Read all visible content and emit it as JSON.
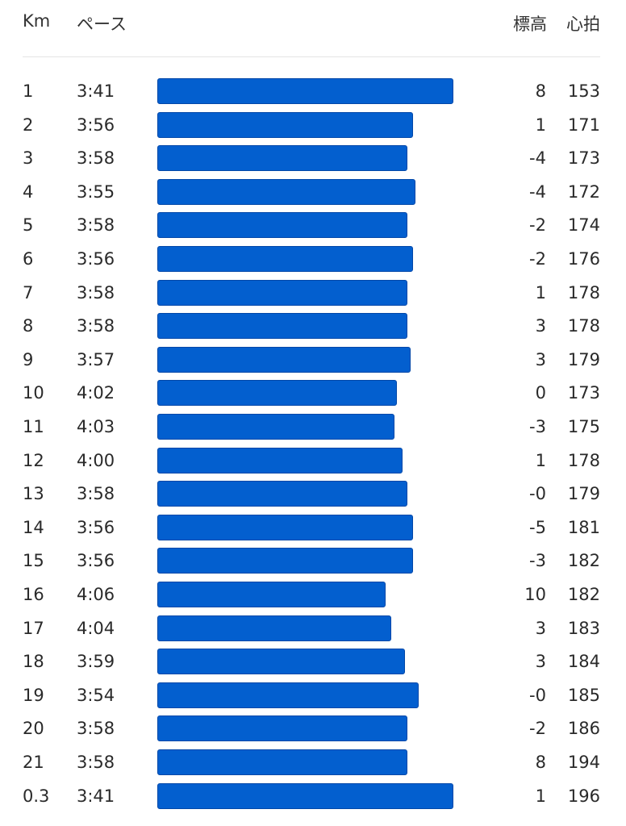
{
  "header": {
    "km": "Km",
    "pace": "ペース",
    "elevation": "標高",
    "heart_rate": "心拍"
  },
  "colors": {
    "bar": "#035fcf",
    "bar_border": "#0247a8"
  },
  "chart_data": {
    "type": "bar",
    "orientation": "horizontal",
    "bar_value_field": "pace",
    "rows": [
      {
        "km": "1",
        "pace": "3:41",
        "pace_seconds": 221,
        "elevation": "8",
        "heart_rate": "153"
      },
      {
        "km": "2",
        "pace": "3:56",
        "pace_seconds": 236,
        "elevation": "1",
        "heart_rate": "171"
      },
      {
        "km": "3",
        "pace": "3:58",
        "pace_seconds": 238,
        "elevation": "-4",
        "heart_rate": "173"
      },
      {
        "km": "4",
        "pace": "3:55",
        "pace_seconds": 235,
        "elevation": "-4",
        "heart_rate": "172"
      },
      {
        "km": "5",
        "pace": "3:58",
        "pace_seconds": 238,
        "elevation": "-2",
        "heart_rate": "174"
      },
      {
        "km": "6",
        "pace": "3:56",
        "pace_seconds": 236,
        "elevation": "-2",
        "heart_rate": "176"
      },
      {
        "km": "7",
        "pace": "3:58",
        "pace_seconds": 238,
        "elevation": "1",
        "heart_rate": "178"
      },
      {
        "km": "8",
        "pace": "3:58",
        "pace_seconds": 238,
        "elevation": "3",
        "heart_rate": "178"
      },
      {
        "km": "9",
        "pace": "3:57",
        "pace_seconds": 237,
        "elevation": "3",
        "heart_rate": "179"
      },
      {
        "km": "10",
        "pace": "4:02",
        "pace_seconds": 242,
        "elevation": "0",
        "heart_rate": "173"
      },
      {
        "km": "11",
        "pace": "4:03",
        "pace_seconds": 243,
        "elevation": "-3",
        "heart_rate": "175"
      },
      {
        "km": "12",
        "pace": "4:00",
        "pace_seconds": 240,
        "elevation": "1",
        "heart_rate": "178"
      },
      {
        "km": "13",
        "pace": "3:58",
        "pace_seconds": 238,
        "elevation": "-0",
        "heart_rate": "179"
      },
      {
        "km": "14",
        "pace": "3:56",
        "pace_seconds": 236,
        "elevation": "-5",
        "heart_rate": "181"
      },
      {
        "km": "15",
        "pace": "3:56",
        "pace_seconds": 236,
        "elevation": "-3",
        "heart_rate": "182"
      },
      {
        "km": "16",
        "pace": "4:06",
        "pace_seconds": 246,
        "elevation": "10",
        "heart_rate": "182"
      },
      {
        "km": "17",
        "pace": "4:04",
        "pace_seconds": 244,
        "elevation": "3",
        "heart_rate": "183"
      },
      {
        "km": "18",
        "pace": "3:59",
        "pace_seconds": 239,
        "elevation": "3",
        "heart_rate": "184"
      },
      {
        "km": "19",
        "pace": "3:54",
        "pace_seconds": 234,
        "elevation": "-0",
        "heart_rate": "185"
      },
      {
        "km": "20",
        "pace": "3:58",
        "pace_seconds": 238,
        "elevation": "-2",
        "heart_rate": "186"
      },
      {
        "km": "21",
        "pace": "3:58",
        "pace_seconds": 238,
        "elevation": "8",
        "heart_rate": "194"
      },
      {
        "km": "0.3",
        "pace": "3:41",
        "pace_seconds": 221,
        "elevation": "1",
        "heart_rate": "196"
      }
    ]
  }
}
